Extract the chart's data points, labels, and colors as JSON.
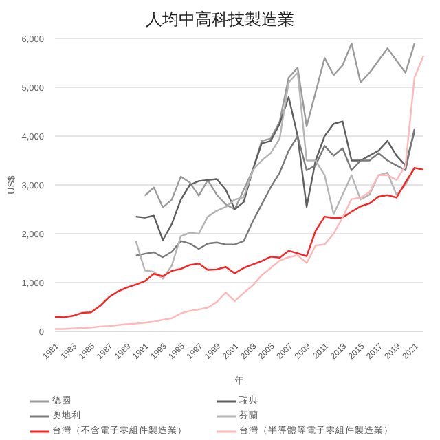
{
  "chart_data": {
    "type": "line",
    "title": "人均中高科技製造業",
    "xlabel": "年",
    "ylabel": "US$",
    "categories": [
      "1981",
      null,
      "1983",
      null,
      "1985",
      null,
      "1987",
      null,
      "1989",
      null,
      "1991",
      null,
      "1993",
      null,
      "1995",
      null,
      "1997",
      null,
      "1999",
      null,
      "2001",
      null,
      "2003",
      null,
      "2005",
      null,
      "2007",
      null,
      "2009",
      null,
      "2011",
      null,
      "2013",
      null,
      "2015",
      null,
      "2017",
      null,
      "2019",
      null,
      "2021",
      null
    ],
    "ylim": [
      0,
      6000
    ],
    "yticks": [
      {
        "value": 0,
        "label": "0"
      },
      {
        "value": 1000,
        "label": "1,000"
      },
      {
        "value": 2000,
        "label": "2,000"
      },
      {
        "value": 3000,
        "label": "3,000"
      },
      {
        "value": 4000,
        "label": "4,000"
      },
      {
        "value": 5000,
        "label": "5,000"
      },
      {
        "value": 6000,
        "label": "6,000"
      }
    ],
    "grid": "y",
    "legend": "bottom",
    "marker": "none",
    "line_style": "solid",
    "series": [
      {
        "name": "德國",
        "color": "#9a9a9a",
        "values": [
          null,
          null,
          null,
          null,
          null,
          null,
          null,
          null,
          null,
          null,
          2780,
          2950,
          2540,
          2700,
          3170,
          3050,
          2780,
          3100,
          2800,
          2600,
          2500,
          2900,
          3300,
          3900,
          3950,
          4300,
          5200,
          5400,
          4200,
          4900,
          5600,
          5250,
          5450,
          5900,
          5100,
          5300,
          5550,
          5800,
          5550,
          5300,
          5900,
          null
        ]
      },
      {
        "name": "瑞典",
        "color": "#5f5f5f",
        "values": [
          null,
          null,
          null,
          null,
          null,
          null,
          null,
          null,
          null,
          2350,
          2330,
          2370,
          1870,
          2200,
          2700,
          3000,
          3080,
          3100,
          3120,
          2900,
          2500,
          2650,
          3300,
          3850,
          3900,
          4250,
          4800,
          4000,
          2550,
          3500,
          4000,
          4250,
          4300,
          3500,
          3500,
          3600,
          3700,
          3900,
          3600,
          3400,
          4100,
          null
        ]
      },
      {
        "name": "奧地利",
        "color": "#7a7a7a",
        "values": [
          null,
          null,
          null,
          null,
          null,
          null,
          null,
          null,
          null,
          1550,
          1590,
          1620,
          1520,
          1630,
          1850,
          1800,
          1690,
          1800,
          1820,
          1780,
          1780,
          1850,
          2250,
          2600,
          2950,
          3250,
          3700,
          4000,
          3300,
          3400,
          3800,
          3600,
          3750,
          3300,
          3500,
          3500,
          3650,
          3500,
          3400,
          3300,
          4150,
          null
        ]
      },
      {
        "name": "芬蘭",
        "color": "#b5b5b5",
        "values": [
          null,
          null,
          null,
          null,
          null,
          null,
          null,
          null,
          null,
          1850,
          1250,
          1220,
          1080,
          1350,
          1950,
          2020,
          2000,
          2350,
          2470,
          2550,
          2700,
          2750,
          3300,
          3500,
          3650,
          3950,
          5100,
          5300,
          3500,
          3500,
          3200,
          2400,
          2800,
          3200,
          2700,
          2800,
          3200,
          3250,
          2800,
          3000,
          3350,
          null
        ]
      },
      {
        "name": "台灣（不含電子零組件製造業）",
        "color": "#ff2020",
        "values": [
          300,
          290,
          320,
          380,
          390,
          520,
          700,
          820,
          900,
          960,
          1030,
          1180,
          1130,
          1240,
          1280,
          1360,
          1390,
          1260,
          1270,
          1320,
          1190,
          1300,
          1370,
          1440,
          1530,
          1510,
          1650,
          1600,
          1540,
          2060,
          2350,
          2320,
          2330,
          2450,
          2560,
          2620,
          2760,
          2790,
          2740,
          3050,
          3350,
          3310
        ]
      },
      {
        "name": "台灣（半導體等電子零組件製造業）",
        "color": "#ffb8b8",
        "values": [
          50,
          50,
          60,
          70,
          80,
          100,
          110,
          130,
          150,
          160,
          180,
          200,
          240,
          270,
          370,
          420,
          450,
          490,
          600,
          800,
          620,
          790,
          940,
          1150,
          1300,
          1450,
          1520,
          1560,
          1400,
          1760,
          1780,
          2000,
          2330,
          2710,
          2740,
          2850,
          3200,
          3200,
          3100,
          3400,
          5200,
          5650
        ]
      }
    ]
  }
}
